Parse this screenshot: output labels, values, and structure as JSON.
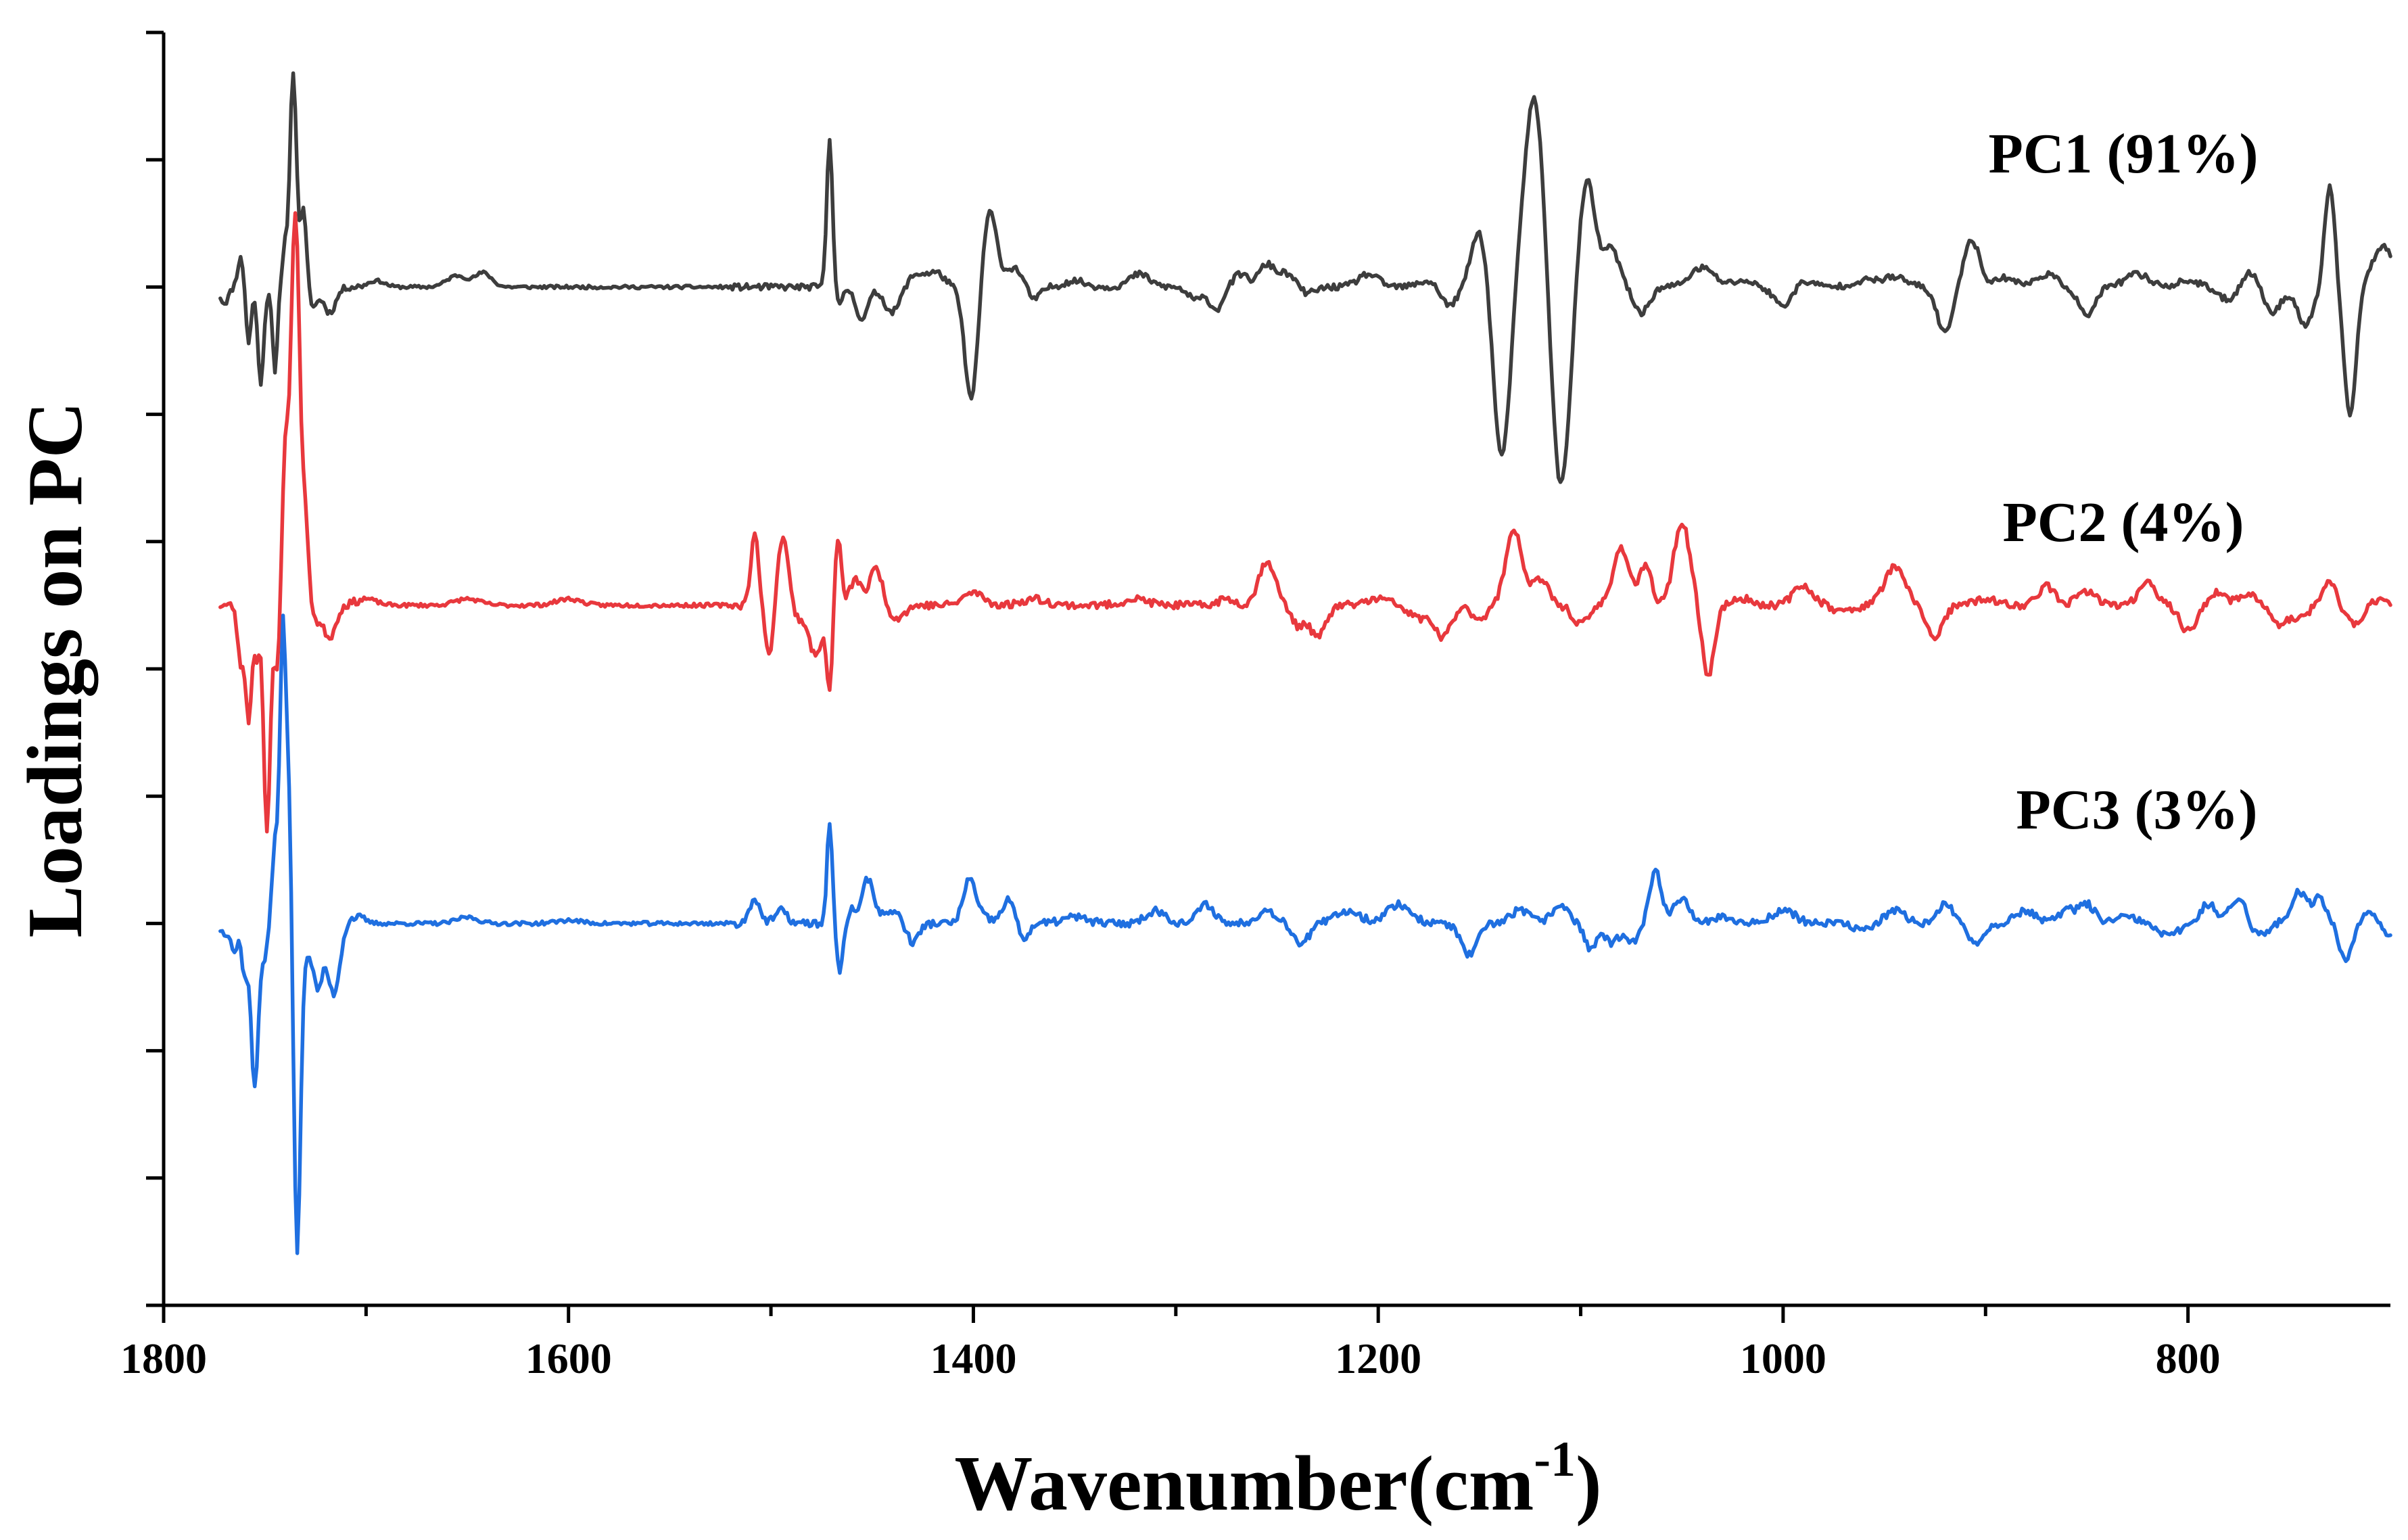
{
  "chart_data": {
    "type": "line",
    "title": "",
    "xlabel": "Wavenumber(cm",
    "xlabel_sup": "-1",
    "xlabel_close": ")",
    "ylabel": "Loadings on PC",
    "xlim": [
      1800,
      700
    ],
    "x_reversed": true,
    "x_ticks": [
      1800,
      1600,
      1400,
      1200,
      1000,
      800
    ],
    "x_tick_labels": [
      "1800",
      "1600",
      "1400",
      "1200",
      "1000",
      "800"
    ],
    "ylim": [
      -10,
      10
    ],
    "y_ticks": [
      -10,
      -8,
      -6,
      -4,
      -2,
      0,
      2,
      4,
      6,
      8,
      10
    ],
    "y_tick_labels_shown": false,
    "grid": false,
    "series": [
      {
        "name": "PC1 (91%)",
        "color": "#3d3d3d",
        "offset": 6,
        "baseline": 0,
        "scale": 1,
        "noise_seed": 11,
        "noise_amp": 0.05,
        "peaks": [
          [
            1770,
            -0.25,
            2.0
          ],
          [
            1762,
            0.45,
            1.5
          ],
          [
            1758,
            -0.9,
            1.2
          ],
          [
            1752,
            -1.5,
            1.5
          ],
          [
            1745,
            -1.3,
            1.2
          ],
          [
            1740,
            0.6,
            1.2
          ],
          [
            1736,
            3.4,
            1.6
          ],
          [
            1731,
            1.2,
            1.5
          ],
          [
            1726,
            -0.3,
            2.0
          ],
          [
            1718,
            -0.4,
            3.0
          ],
          [
            1695,
            0.1,
            4.0
          ],
          [
            1655,
            0.18,
            5.0
          ],
          [
            1642,
            0.22,
            4.0
          ],
          [
            1471,
            2.35,
            1.4
          ],
          [
            1466,
            -0.3,
            1.5
          ],
          [
            1455,
            -0.5,
            3.0
          ],
          [
            1440,
            -0.4,
            4.0
          ],
          [
            1428,
            0.2,
            5.0
          ],
          [
            1418,
            0.2,
            4.0
          ],
          [
            1401,
            -1.8,
            3.2
          ],
          [
            1392,
            1.2,
            3.5
          ],
          [
            1380,
            0.3,
            4.0
          ],
          [
            1370,
            -0.2,
            3.0
          ],
          [
            1350,
            0.1,
            5.0
          ],
          [
            1318,
            0.2,
            5.0
          ],
          [
            1290,
            -0.2,
            4.0
          ],
          [
            1280,
            -0.35,
            3.0
          ],
          [
            1268,
            0.2,
            3.5
          ],
          [
            1255,
            0.35,
            4.0
          ],
          [
            1245,
            0.2,
            4.0
          ],
          [
            1235,
            -0.1,
            4.0
          ],
          [
            1205,
            0.2,
            5.0
          ],
          [
            1175,
            0.1,
            5.0
          ],
          [
            1165,
            -0.3,
            4.0
          ],
          [
            1150,
            0.9,
            4.0
          ],
          [
            1139,
            -2.7,
            4.0
          ],
          [
            1123,
            3.0,
            5.0
          ],
          [
            1110,
            -3.2,
            4.5
          ],
          [
            1097,
            1.7,
            4.0
          ],
          [
            1085,
            0.6,
            4.0
          ],
          [
            1070,
            -0.4,
            4.0
          ],
          [
            1040,
            0.3,
            6.0
          ],
          [
            1020,
            0.1,
            5.0
          ],
          [
            1000,
            -0.3,
            4.5
          ],
          [
            990,
            0.1,
            5.0
          ],
          [
            960,
            0.1,
            6.0
          ],
          [
            945,
            0.15,
            6.0
          ],
          [
            920,
            -0.7,
            4.0
          ],
          [
            907,
            0.75,
            4.0
          ],
          [
            890,
            0.15,
            5.0
          ],
          [
            870,
            0.2,
            5.0
          ],
          [
            850,
            -0.45,
            4.0
          ],
          [
            825,
            0.2,
            6.0
          ],
          [
            800,
            0.1,
            5.0
          ],
          [
            780,
            -0.2,
            5.0
          ],
          [
            770,
            0.25,
            4.0
          ],
          [
            758,
            -0.4,
            4.0
          ],
          [
            742,
            -0.6,
            4.0
          ],
          [
            730,
            1.6,
            2.5
          ],
          [
            720,
            -2.0,
            3.0
          ],
          [
            708,
            0.3,
            4.0
          ],
          [
            702,
            0.5,
            4.0
          ]
        ]
      },
      {
        "name": "PC2 (4%)",
        "color": "#e8383d",
        "offset": 1,
        "baseline": 0,
        "scale": 1,
        "noise_seed": 23,
        "noise_amp": 0.06,
        "peaks": [
          [
            1762,
            -0.9,
            1.5
          ],
          [
            1758,
            -1.8,
            1.5
          ],
          [
            1754,
            -0.8,
            1.2
          ],
          [
            1749,
            -3.6,
            1.6
          ],
          [
            1744,
            -1.0,
            1.5
          ],
          [
            1740,
            2.2,
            1.5
          ],
          [
            1735,
            6.2,
            2.2
          ],
          [
            1730,
            1.2,
            1.5
          ],
          [
            1724,
            -0.2,
            2.0
          ],
          [
            1718,
            -0.5,
            3.0
          ],
          [
            1700,
            0.1,
            5.0
          ],
          [
            1650,
            0.1,
            6.0
          ],
          [
            1600,
            0.1,
            6.0
          ],
          [
            1508,
            1.1,
            2.0
          ],
          [
            1501,
            -0.8,
            2.0
          ],
          [
            1494,
            1.1,
            2.5
          ],
          [
            1486,
            -0.2,
            3.0
          ],
          [
            1478,
            -0.8,
            3.0
          ],
          [
            1471,
            -1.3,
            1.6
          ],
          [
            1467,
            1.1,
            1.6
          ],
          [
            1458,
            0.4,
            3.0
          ],
          [
            1448,
            0.6,
            3.0
          ],
          [
            1438,
            -0.2,
            4.0
          ],
          [
            1400,
            0.2,
            5.0
          ],
          [
            1370,
            0.1,
            6.0
          ],
          [
            1320,
            0.1,
            6.0
          ],
          [
            1275,
            0.1,
            4.0
          ],
          [
            1255,
            0.7,
            4.0
          ],
          [
            1240,
            -0.3,
            3.0
          ],
          [
            1230,
            -0.5,
            4.0
          ],
          [
            1200,
            0.1,
            6.0
          ],
          [
            1180,
            -0.2,
            5.0
          ],
          [
            1168,
            -0.5,
            4.0
          ],
          [
            1150,
            -0.2,
            4.0
          ],
          [
            1133,
            1.2,
            4.0
          ],
          [
            1120,
            0.4,
            4.0
          ],
          [
            1100,
            -0.3,
            4.0
          ],
          [
            1080,
            0.9,
            4.0
          ],
          [
            1068,
            0.6,
            3.0
          ],
          [
            1050,
            1.3,
            4.0
          ],
          [
            1037,
            -1.1,
            3.0
          ],
          [
            1020,
            0.1,
            5.0
          ],
          [
            990,
            0.3,
            5.0
          ],
          [
            970,
            -0.1,
            5.0
          ],
          [
            945,
            0.6,
            5.0
          ],
          [
            925,
            -0.5,
            4.0
          ],
          [
            900,
            0.1,
            5.0
          ],
          [
            870,
            0.3,
            4.0
          ],
          [
            850,
            0.2,
            5.0
          ],
          [
            820,
            0.4,
            4.0
          ],
          [
            800,
            -0.4,
            4.0
          ],
          [
            785,
            0.2,
            4.0
          ],
          [
            770,
            0.2,
            4.0
          ],
          [
            755,
            -0.3,
            4.0
          ],
          [
            745,
            -0.2,
            4.0
          ],
          [
            730,
            0.4,
            3.0
          ],
          [
            718,
            -0.3,
            4.0
          ],
          [
            705,
            0.1,
            4.0
          ]
        ]
      },
      {
        "name": "PC3 (3%)",
        "color": "#1f6fe0",
        "offset": -4,
        "baseline": 0,
        "scale": 1,
        "noise_seed": 37,
        "noise_amp": 0.06,
        "peaks": [
          [
            1770,
            -0.15,
            2.0
          ],
          [
            1765,
            -0.45,
            1.5
          ],
          [
            1760,
            -0.8,
            1.5
          ],
          [
            1755,
            -2.6,
            1.8
          ],
          [
            1750,
            -0.5,
            1.5
          ],
          [
            1745,
            1.2,
            1.5
          ],
          [
            1741,
            4.7,
            1.5
          ],
          [
            1738,
            1.7,
            1.2
          ],
          [
            1734,
            -5.1,
            1.6
          ],
          [
            1730,
            -0.4,
            2.0
          ],
          [
            1724,
            -1.0,
            2.5
          ],
          [
            1716,
            -1.1,
            3.0
          ],
          [
            1705,
            0.1,
            4.0
          ],
          [
            1650,
            0.1,
            5.0
          ],
          [
            1600,
            0.05,
            6.0
          ],
          [
            1508,
            0.4,
            2.5
          ],
          [
            1495,
            0.2,
            3.0
          ],
          [
            1471,
            1.6,
            1.3
          ],
          [
            1466,
            -0.8,
            1.5
          ],
          [
            1460,
            0.2,
            2.0
          ],
          [
            1452,
            0.7,
            3.0
          ],
          [
            1440,
            0.2,
            4.0
          ],
          [
            1430,
            -0.3,
            3.0
          ],
          [
            1402,
            0.7,
            3.0
          ],
          [
            1395,
            0.1,
            3.0
          ],
          [
            1382,
            0.4,
            3.5
          ],
          [
            1376,
            -0.3,
            3.0
          ],
          [
            1350,
            0.1,
            6.0
          ],
          [
            1310,
            0.2,
            5.0
          ],
          [
            1285,
            0.3,
            4.0
          ],
          [
            1255,
            0.2,
            5.0
          ],
          [
            1238,
            -0.3,
            4.0
          ],
          [
            1215,
            0.2,
            6.0
          ],
          [
            1190,
            0.3,
            6.0
          ],
          [
            1155,
            -0.5,
            4.0
          ],
          [
            1130,
            0.2,
            5.0
          ],
          [
            1110,
            0.3,
            4.0
          ],
          [
            1095,
            -0.4,
            3.0
          ],
          [
            1085,
            -0.3,
            3.0
          ],
          [
            1075,
            -0.3,
            4.0
          ],
          [
            1063,
            0.8,
            3.0
          ],
          [
            1050,
            0.4,
            4.0
          ],
          [
            1030,
            0.1,
            5.0
          ],
          [
            1000,
            0.2,
            6.0
          ],
          [
            960,
            -0.1,
            5.0
          ],
          [
            945,
            0.2,
            5.0
          ],
          [
            920,
            0.3,
            4.0
          ],
          [
            905,
            -0.3,
            4.0
          ],
          [
            880,
            0.2,
            5.0
          ],
          [
            860,
            0.2,
            4.0
          ],
          [
            850,
            0.3,
            4.0
          ],
          [
            830,
            0.1,
            5.0
          ],
          [
            810,
            -0.2,
            5.0
          ],
          [
            790,
            0.3,
            4.0
          ],
          [
            775,
            0.4,
            4.0
          ],
          [
            765,
            -0.2,
            4.0
          ],
          [
            745,
            0.5,
            4.0
          ],
          [
            735,
            0.4,
            3.0
          ],
          [
            722,
            -0.6,
            3.0
          ],
          [
            710,
            0.2,
            4.0
          ],
          [
            700,
            -0.2,
            4.0
          ]
        ]
      }
    ]
  }
}
